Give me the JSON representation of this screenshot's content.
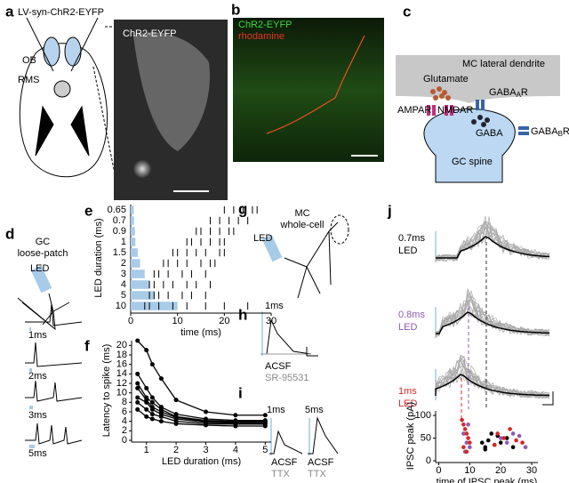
{
  "panels": {
    "a": {
      "letter": "a",
      "vector": "LV-syn-ChR2-EYFP",
      "ob": "OB",
      "rms": "RMS",
      "image_label": "ChR2-EYFP"
    },
    "b": {
      "letter": "b",
      "green": "ChR2-EYFP",
      "red": "rhodamine"
    },
    "c": {
      "letter": "c",
      "dendrite": "MC lateral dendrite",
      "glutamate": "Glutamate",
      "gabaar": {
        "main": "GABA",
        "sub": "A",
        "end": "R"
      },
      "ampar": "AMPAR",
      "nmdar": "NMDAR",
      "gaba": "GABA",
      "gababr": {
        "main": "GABA",
        "sub": "B",
        "end": "R"
      },
      "spine": "GC spine"
    },
    "d": {
      "letter": "d",
      "cell": "GC",
      "mode": "loose-patch",
      "led": "LED",
      "traces": [
        "1ms",
        "2ms",
        "3ms",
        "5ms"
      ]
    },
    "e": {
      "letter": "e"
    },
    "f": {
      "letter": "f"
    },
    "g": {
      "letter": "g",
      "cell": "MC",
      "mode": "whole-cell",
      "led": "LED"
    },
    "h": {
      "letter": "h",
      "duration": "1ms",
      "control": "ACSF",
      "drug": "SR-95531"
    },
    "i": {
      "letter": "i",
      "d1": "1ms",
      "d2": "5ms",
      "control1": "ACSF",
      "drug1": "TTX",
      "control2": "ACSF",
      "drug2": "TTX"
    },
    "j": {
      "letter": "j",
      "rows": [
        {
          "duration": "0.7ms",
          "led": "LED"
        },
        {
          "duration": "0.8ms",
          "led": "LED"
        },
        {
          "duration": "1ms",
          "led": "LED"
        }
      ]
    }
  },
  "chart_data": [
    {
      "type": "raster",
      "xlabel": "time (ms)",
      "ylabel": "LED duration (ms)",
      "categories": [
        "0.65",
        "0.7",
        "0.9",
        "1",
        "1.5",
        "2",
        "3",
        "4",
        "5",
        "10"
      ],
      "values": [
        0.65,
        0.7,
        0.9,
        1,
        1.5,
        2,
        3,
        4,
        5,
        10
      ],
      "color": "#a8cbe8",
      "spikes": [
        [
          20,
          22,
          24,
          26,
          27
        ],
        [
          17,
          19,
          21,
          23,
          25
        ],
        [
          14,
          15,
          17,
          19,
          21,
          22
        ],
        [
          12,
          13,
          15,
          17,
          19,
          20
        ],
        [
          9,
          10,
          12,
          14,
          16,
          19,
          20
        ],
        [
          7,
          8,
          10,
          12,
          15,
          17,
          18
        ],
        [
          5,
          6,
          8,
          11,
          13,
          16
        ],
        [
          4,
          5,
          7,
          9,
          12,
          14,
          17
        ],
        [
          4,
          5,
          6,
          8,
          11,
          13,
          16
        ],
        [
          3,
          4,
          6,
          9,
          12,
          16,
          20,
          25
        ]
      ],
      "xlim": [
        0,
        30
      ],
      "xticks": [
        0,
        10,
        20,
        30
      ]
    },
    {
      "type": "line",
      "xlabel": "LED duration (ms)",
      "ylabel": "Latency to spike (ms)",
      "x": [
        0.7,
        1,
        1.2,
        1.5,
        2,
        3,
        4,
        5
      ],
      "series": [
        {
          "color": "#000000",
          "values": [
            21,
            19,
            16,
            13,
            8.5,
            6,
            5.3,
            5.3
          ]
        },
        {
          "color": "#000000",
          "values": [
            14,
            11,
            9,
            7,
            5.5,
            4.5,
            4.2,
            4.2
          ]
        },
        {
          "color": "#000000",
          "values": [
            12,
            9,
            8,
            6.5,
            5,
            4.2,
            4,
            4
          ]
        },
        {
          "color": "#000000",
          "values": [
            11,
            8.5,
            7,
            6,
            4.8,
            4,
            3.8,
            3.8
          ]
        },
        {
          "color": "#000000",
          "values": [
            9,
            8,
            6.5,
            5.5,
            4.5,
            3.8,
            3.6,
            3.6
          ]
        },
        {
          "color": "#000000",
          "values": [
            8,
            6.5,
            5.5,
            5,
            4,
            3.5,
            3.4,
            3.4
          ]
        },
        {
          "color": "#000000",
          "values": [
            6.5,
            5,
            4.5,
            4,
            3.5,
            3.2,
            3,
            3
          ]
        }
      ],
      "xlim": [
        0.5,
        5.2
      ],
      "xticks": [
        1,
        2,
        3,
        4,
        5
      ],
      "ylim": [
        0,
        21
      ],
      "yticks": [
        0,
        2,
        4,
        6,
        8,
        10,
        12,
        14,
        16,
        18,
        20
      ]
    },
    {
      "type": "scatter",
      "xlabel": "time of IPSC peak (ms)",
      "ylabel": "IPSC peak (pA)",
      "series": [
        {
          "color": "#000000",
          "x": [
            14,
            15,
            16,
            18,
            19,
            20,
            22,
            24,
            15,
            17
          ],
          "values": [
            40,
            30,
            45,
            35,
            55,
            40,
            50,
            30,
            25,
            60
          ]
        },
        {
          "color": "#8e5bb5",
          "x": [
            8,
            9,
            9.5,
            10,
            20,
            22,
            24,
            26,
            28,
            8.5
          ],
          "values": [
            60,
            40,
            80,
            30,
            50,
            40,
            60,
            55,
            30,
            20
          ]
        },
        {
          "color": "#d62728",
          "x": [
            7.5,
            8,
            8.5,
            9,
            9.5,
            10,
            8,
            9,
            19,
            21,
            23,
            25,
            27,
            18
          ],
          "values": [
            90,
            80,
            70,
            60,
            50,
            40,
            30,
            20,
            60,
            50,
            70,
            45,
            40,
            35
          ]
        }
      ],
      "xlim": [
        -1,
        32
      ],
      "xticks": [
        0,
        10,
        20,
        30
      ],
      "ylim": [
        0,
        110
      ],
      "yticks": [
        0,
        50,
        100
      ]
    }
  ]
}
